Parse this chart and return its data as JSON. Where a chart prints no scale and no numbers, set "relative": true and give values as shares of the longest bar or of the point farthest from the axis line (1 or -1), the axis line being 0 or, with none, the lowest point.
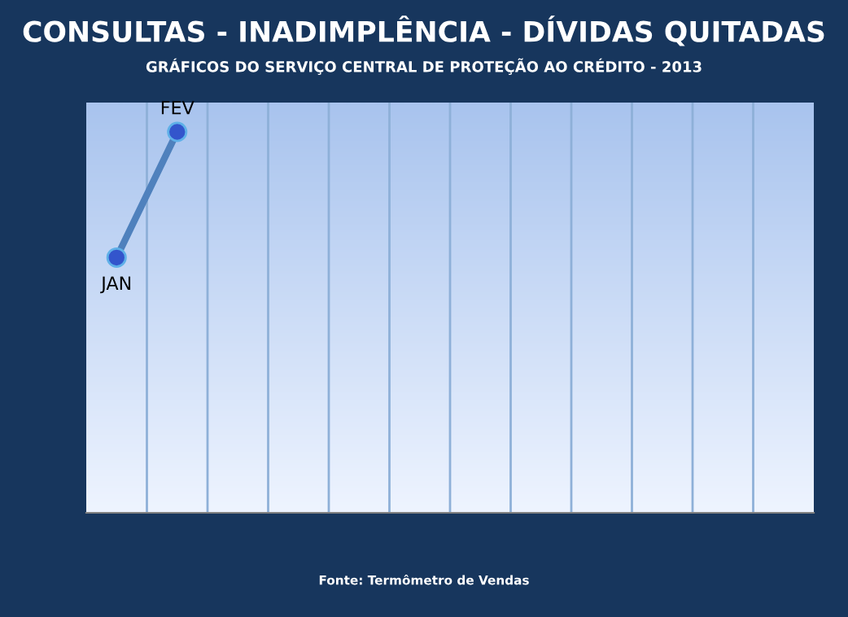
{
  "chart_data": {
    "type": "line",
    "title": "CONSULTAS - INADIMPLÊNCIA - DÍVIDAS QUITADAS",
    "subtitle": "GRÁFICOS DO SERVIÇO CENTRAL DE PROTEÇÃO AO CRÉDITO - 2013",
    "categories": [
      "JAN",
      "FEV",
      null,
      null,
      null,
      null,
      null,
      null,
      null,
      null,
      null,
      null
    ],
    "series": [
      {
        "color": "#4f81bd",
        "values": [
          0.67,
          1,
          null,
          null,
          null,
          null,
          null,
          null,
          null,
          null,
          null,
          null
        ]
      }
    ],
    "relative": true,
    "marker": "circle",
    "line_style": "solid",
    "grid": "x",
    "legend": false,
    "annotations": [
      "Fonte: Termômetro de Vendas"
    ]
  }
}
